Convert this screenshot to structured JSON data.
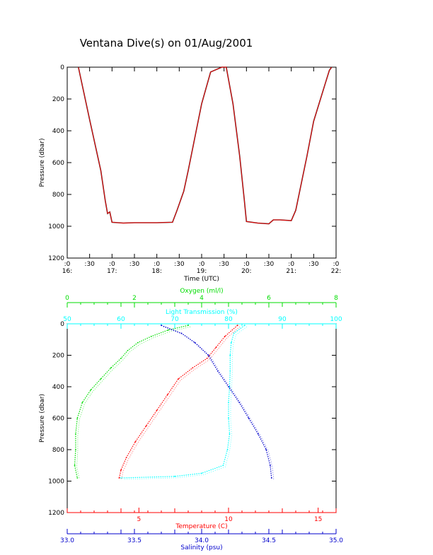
{
  "page_title": "Ventana Dive(s) on 01/Aug/2001",
  "chart_data": [
    {
      "type": "line",
      "ylabel": "Pressure (dbar)",
      "xlabel": "Time (UTC)",
      "yticks": [
        0,
        200,
        400,
        600,
        800,
        1000,
        1200
      ],
      "ylim": [
        1200,
        0
      ],
      "xlim": [
        16.0,
        22.0
      ],
      "xtick_labels": [
        {
          "top": ":0",
          "bottom": "16:"
        },
        {
          "top": ":30",
          "bottom": ""
        },
        {
          "top": ":0",
          "bottom": "17:"
        },
        {
          "top": ":30",
          "bottom": ""
        },
        {
          "top": ":0",
          "bottom": "18:"
        },
        {
          "top": ":30",
          "bottom": ""
        },
        {
          "top": ":0",
          "bottom": "19:"
        },
        {
          "top": ":30",
          "bottom": ""
        },
        {
          "top": ":0",
          "bottom": "20:"
        },
        {
          "top": ":30",
          "bottom": ""
        },
        {
          "top": ":0",
          "bottom": "21:"
        },
        {
          "top": ":30",
          "bottom": ""
        },
        {
          "top": ":0",
          "bottom": "22:"
        }
      ],
      "series": [
        {
          "color": "#ff0000",
          "x": [
            16.25,
            16.5,
            16.75,
            16.85,
            16.9,
            16.95,
            17.0,
            17.25,
            17.5,
            17.75,
            18.0,
            18.35,
            18.45,
            18.6,
            18.7,
            18.85,
            19.0,
            19.2,
            19.45,
            19.55,
            19.7,
            19.85,
            19.95,
            20.0,
            20.25,
            20.5,
            20.6,
            20.75,
            21.0,
            21.1,
            21.35,
            21.5,
            21.75,
            21.85,
            21.9
          ],
          "y": [
            0,
            330,
            650,
            840,
            920,
            910,
            975,
            980,
            978,
            978,
            978,
            975,
            900,
            780,
            650,
            440,
            230,
            30,
            0,
            0,
            230,
            560,
            830,
            970,
            980,
            985,
            960,
            960,
            965,
            900,
            560,
            340,
            110,
            20,
            0
          ]
        }
      ]
    },
    {
      "type": "scatter",
      "ylabel": "Pressure (dbar)",
      "yticks": [
        0,
        200,
        400,
        600,
        800,
        1000,
        1200
      ],
      "ylim": [
        1200,
        0
      ],
      "axes": [
        {
          "label": "Oxygen (ml/l)",
          "position": "top",
          "color": "#00dd00",
          "range": [
            0,
            8
          ],
          "ticks": [
            "0",
            "2",
            "4",
            "6",
            "8"
          ]
        },
        {
          "label": "Light Transmission (%)",
          "position": "top",
          "color": "#00ffff",
          "range": [
            50,
            100
          ],
          "ticks": [
            "50",
            "60",
            "70",
            "80",
            "90",
            "100"
          ]
        },
        {
          "label": "Temperature (C)",
          "position": "bottom",
          "color": "#ff0000",
          "range": [
            1,
            16
          ],
          "ticks": [
            "5",
            "10",
            "15"
          ]
        },
        {
          "label": "Salinity (psu)",
          "position": "bottom",
          "color": "#0000cc",
          "range": [
            33.0,
            35.0
          ],
          "ticks": [
            "33.0",
            "33.5",
            "34.0",
            "34.5",
            "35.0"
          ]
        }
      ],
      "series": [
        {
          "axis": 0,
          "color": "#00dd00",
          "x": [
            3.6,
            3.0,
            2.5,
            2.1,
            1.8,
            1.6,
            1.3,
            1.0,
            0.7,
            0.45,
            0.3,
            0.25,
            0.25,
            0.22,
            0.3
          ],
          "y": [
            10,
            40,
            80,
            120,
            170,
            220,
            280,
            350,
            420,
            500,
            600,
            700,
            800,
            900,
            980
          ]
        },
        {
          "axis": 1,
          "color": "#00ffff",
          "x": [
            83,
            81,
            80.5,
            80.3,
            80.3,
            80.2,
            80.0,
            80.0,
            80.2,
            79.8,
            79.0,
            75.0,
            70.0,
            60.0
          ],
          "y": [
            10,
            60,
            120,
            200,
            300,
            400,
            500,
            600,
            700,
            800,
            900,
            950,
            970,
            980
          ]
        },
        {
          "axis": 2,
          "color": "#ff0000",
          "x": [
            10.5,
            9.8,
            9.3,
            8.8,
            8.0,
            7.2,
            6.6,
            6.0,
            5.4,
            4.8,
            4.3,
            4.0,
            3.9
          ],
          "y": [
            10,
            80,
            150,
            220,
            280,
            350,
            450,
            550,
            650,
            750,
            850,
            930,
            980
          ]
        },
        {
          "axis": 3,
          "color": "#0000cc",
          "x": [
            33.7,
            33.85,
            33.95,
            34.05,
            34.12,
            34.2,
            34.28,
            34.35,
            34.42,
            34.48,
            34.51,
            34.52
          ],
          "y": [
            10,
            60,
            120,
            200,
            300,
            400,
            500,
            600,
            700,
            800,
            900,
            980
          ]
        }
      ]
    }
  ]
}
